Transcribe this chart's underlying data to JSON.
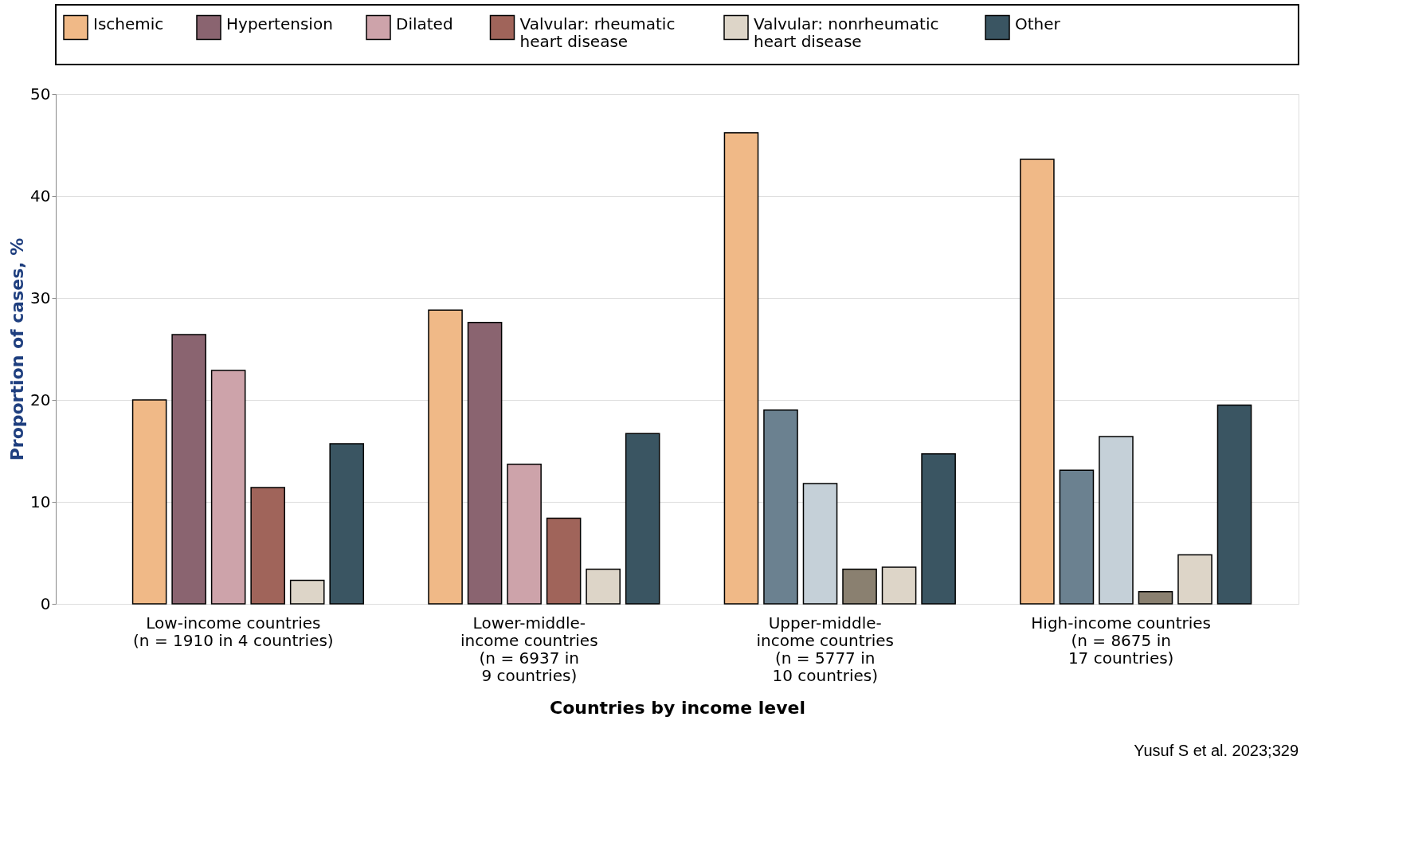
{
  "chart_data": {
    "type": "bar",
    "xlabel": "Countries by income level",
    "ylabel": "Proportion of cases, %",
    "categories": [
      "Low-income countries\n(n = 1910 in 4 countries)",
      "Lower-middle-\nincome countries\n(n = 6937 in\n9 countries)",
      "Upper-middle-\nincome countries\n(n = 5777 in\n10 countries)",
      "High-income countries\n(n = 8675 in\n17 countries)"
    ],
    "series": [
      {
        "name": "Ischemic",
        "color": "#f0b987",
        "values": [
          20.0,
          28.8,
          46.2,
          43.6
        ]
      },
      {
        "name": "Hypertension",
        "color": "#8a6470",
        "colors": [
          "#8a6470",
          "#8a6470",
          "#6b8190",
          "#6b8190"
        ],
        "values": [
          26.4,
          27.6,
          19.0,
          13.1
        ]
      },
      {
        "name": "Dilated",
        "color": "#cda3aa",
        "colors": [
          "#cda3aa",
          "#cda3aa",
          "#c5d0d8",
          "#c5d0d8"
        ],
        "values": [
          22.9,
          13.7,
          11.8,
          16.4
        ]
      },
      {
        "name": "Valvular: rheumatic\nheart disease",
        "color": "#a0645a",
        "colors": [
          "#a0645a",
          "#a0645a",
          "#8a8070",
          "#8a8070"
        ],
        "values": [
          11.4,
          8.4,
          3.4,
          1.2
        ]
      },
      {
        "name": "Valvular: nonrheumatic\nheart disease",
        "color": "#ddd5c8",
        "values": [
          2.3,
          3.4,
          3.6,
          4.8
        ]
      },
      {
        "name": "Other",
        "color": "#3a5562",
        "values": [
          15.7,
          16.7,
          14.7,
          19.5
        ]
      }
    ],
    "ylim": [
      0,
      50
    ],
    "yticks": [
      0,
      10,
      20,
      30,
      40,
      50
    ],
    "grid": "y",
    "legend": "top",
    "annotations": [
      "Yusuf S et al. 2023;329"
    ]
  }
}
